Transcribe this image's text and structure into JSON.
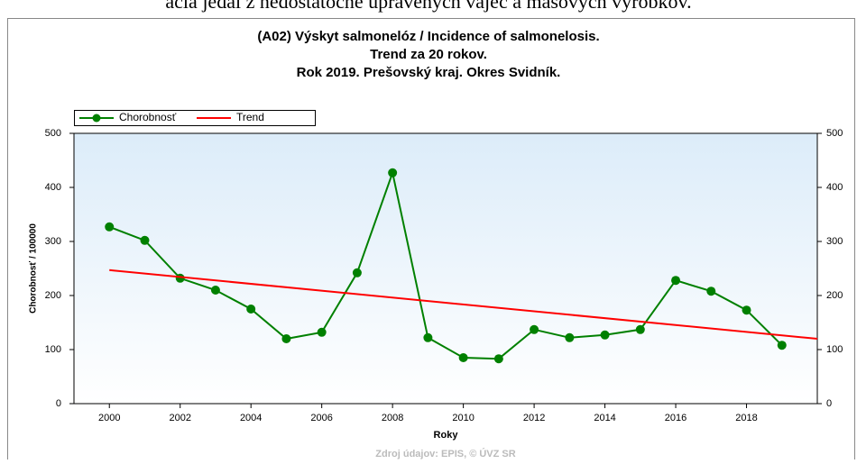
{
  "header_text": "acia jedál z nedostatočne upravených vajec a mäsových výrobkov.",
  "chart_data": {
    "type": "line",
    "title": [
      "(A02) Výskyt salmonelóz / Incidence of salmonelosis.",
      "Trend za 20 rokov.",
      "Rok 2019. Prešovský kraj. Okres Svidník."
    ],
    "xlabel": "Roky",
    "ylabel": "Chorobnosť / 100000",
    "source": "Zdroj údajov: EPIS, © ÚVZ SR",
    "xlim": [
      1999,
      2020
    ],
    "xticks": [
      2000,
      2002,
      2004,
      2006,
      2008,
      2010,
      2012,
      2014,
      2016,
      2018
    ],
    "ylim": [
      0,
      500
    ],
    "yticks": [
      0,
      100,
      200,
      300,
      400,
      500
    ],
    "y2lim": [
      0,
      500
    ],
    "y2ticks": [
      0,
      100,
      200,
      300,
      400,
      500
    ],
    "legend": "top-left",
    "series": [
      {
        "name": "Chorobnosť",
        "color": "#008000",
        "markers": true,
        "x": [
          2000,
          2001,
          2002,
          2003,
          2004,
          2005,
          2006,
          2007,
          2008,
          2009,
          2010,
          2011,
          2012,
          2013,
          2014,
          2015,
          2016,
          2017,
          2018,
          2019
        ],
        "values": [
          327,
          302,
          232,
          210,
          175,
          120,
          132,
          242,
          427,
          122,
          85,
          83,
          137,
          122,
          127,
          137,
          228,
          208,
          173,
          108
        ]
      },
      {
        "name": "Trend",
        "color": "#ff0000",
        "markers": false,
        "x": [
          2000,
          2020
        ],
        "values": [
          247,
          120
        ]
      }
    ]
  }
}
